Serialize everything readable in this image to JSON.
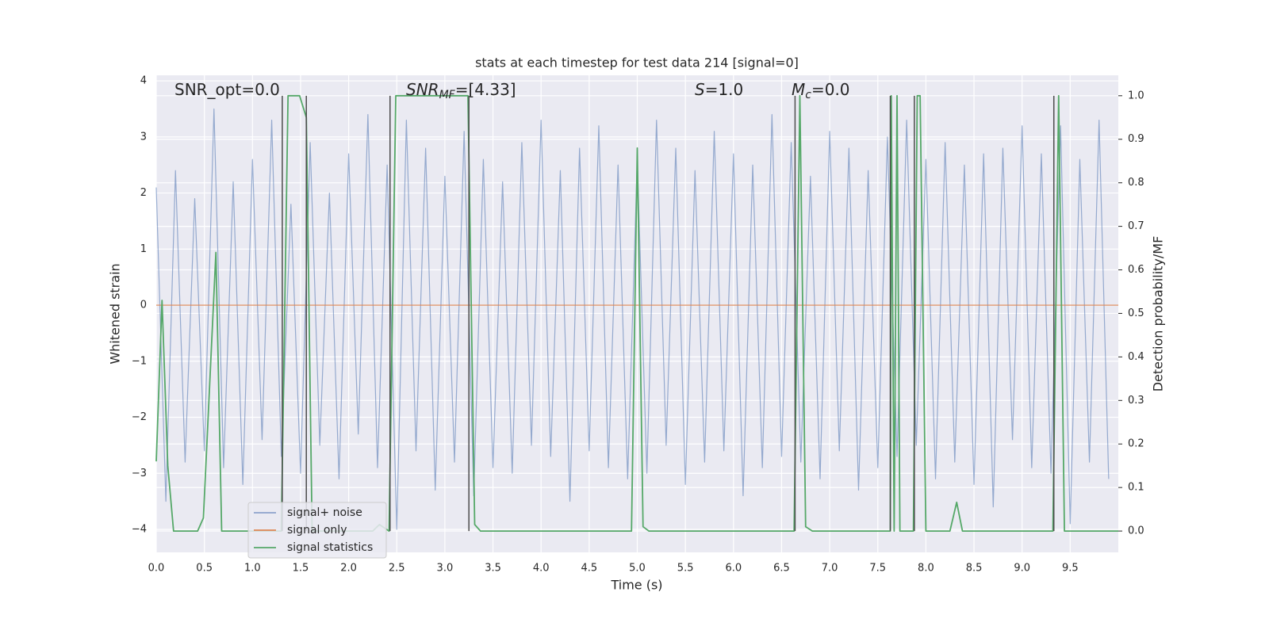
{
  "chart_data": {
    "type": "line",
    "title": "stats at each timestep for test data 214 [signal=0]",
    "xlabel": "Time (s)",
    "ylabel": "Whitened strain",
    "y2label": "Detection probability/MF",
    "xlim": [
      0,
      10
    ],
    "ylim": [
      -4.41,
      4.1
    ],
    "y2lim": [
      -0.049,
      1.047
    ],
    "xticks": [
      {
        "value": 0,
        "label": "0.0"
      },
      0.5,
      {
        "value": 1,
        "label": "1.0"
      },
      1.5,
      {
        "value": 2,
        "label": "2.0"
      },
      2.5,
      {
        "value": 3,
        "label": "3.0"
      },
      3.5,
      {
        "value": 4,
        "label": "4.0"
      },
      4.5,
      {
        "value": 5,
        "label": "5.0"
      },
      5.5,
      {
        "value": 6,
        "label": "6.0"
      },
      6.5,
      {
        "value": 7,
        "label": "7.0"
      },
      7.5,
      {
        "value": 8,
        "label": "8.0"
      },
      8.5,
      {
        "value": 9,
        "label": "9.0"
      },
      9.5
    ],
    "yticks": [
      {
        "value": -4,
        "label": "−4"
      },
      {
        "value": -3,
        "label": "−3"
      },
      {
        "value": -2,
        "label": "−2"
      },
      {
        "value": -1,
        "label": "−1"
      },
      0,
      1,
      2,
      3,
      4
    ],
    "y2ticks": [
      {
        "value": 0,
        "label": "0.0"
      },
      0.1,
      0.2,
      0.3,
      0.4,
      0.5,
      0.6,
      0.7,
      0.8,
      0.9,
      {
        "value": 1,
        "label": "1.0"
      }
    ],
    "grid": true,
    "legend": "lower left",
    "annotations": [
      {
        "main": "SNR_opt=0.0",
        "italic": false
      },
      {
        "main": "SNR",
        "sub": "MF",
        "rest": "=[4.33]",
        "italic": true
      },
      {
        "main": "S",
        "rest": "=1.0",
        "italic": true
      },
      {
        "main": "M",
        "sub": "c",
        "rest": "=0.0",
        "italic": true
      }
    ],
    "vlines": {
      "color": "#4d4d4d",
      "x": [
        1.31,
        1.56,
        2.43,
        3.25,
        6.64,
        7.63,
        7.88,
        9.33
      ]
    },
    "series": [
      {
        "name": "signal+ noise",
        "color": "#4c72b0",
        "x": [
          0.0,
          0.1,
          0.2,
          0.3,
          0.4,
          0.5,
          0.6,
          0.7,
          0.8,
          0.9,
          1.0,
          1.1,
          1.2,
          1.3,
          1.4,
          1.5,
          1.6,
          1.7,
          1.8,
          1.9,
          2.0,
          2.1,
          2.2,
          2.3,
          2.4,
          2.5,
          2.6,
          2.7,
          2.8,
          2.9,
          3.0,
          3.1,
          3.2,
          3.3,
          3.4,
          3.5,
          3.6,
          3.7,
          3.8,
          3.9,
          4.0,
          4.1,
          4.2,
          4.3,
          4.4,
          4.5,
          4.6,
          4.7,
          4.8,
          4.9,
          5.0,
          5.1,
          5.2,
          5.3,
          5.4,
          5.5,
          5.6,
          5.7,
          5.8,
          5.9,
          6.0,
          6.1,
          6.2,
          6.3,
          6.4,
          6.5,
          6.6,
          6.7,
          6.8,
          6.9,
          7.0,
          7.1,
          7.2,
          7.3,
          7.4,
          7.5,
          7.6,
          7.7,
          7.8,
          7.9,
          8.0,
          8.1,
          8.2,
          8.3,
          8.4,
          8.5,
          8.6,
          8.7,
          8.8,
          8.9,
          9.0,
          9.1,
          9.2,
          9.3,
          9.4,
          9.5,
          9.6,
          9.7,
          9.8,
          9.9
        ],
        "values": [
          2.1,
          -3.5,
          2.4,
          -2.8,
          1.9,
          -2.6,
          3.5,
          -2.9,
          2.2,
          -3.2,
          2.6,
          -2.4,
          3.3,
          -2.7,
          1.8,
          -3.0,
          2.9,
          -2.5,
          2.0,
          -3.1,
          2.7,
          -2.3,
          3.4,
          -2.9,
          2.5,
          -4.0,
          3.3,
          -2.6,
          2.8,
          -3.3,
          2.3,
          -2.8,
          3.1,
          -3.4,
          2.6,
          -2.9,
          2.2,
          -3.0,
          2.9,
          -2.5,
          3.3,
          -2.7,
          2.4,
          -3.5,
          2.8,
          -2.6,
          3.2,
          -2.9,
          2.5,
          -3.1,
          2.6,
          -3.0,
          3.3,
          -2.5,
          2.8,
          -3.2,
          2.4,
          -2.8,
          3.1,
          -2.6,
          2.7,
          -3.4,
          2.5,
          -2.9,
          3.4,
          -2.7,
          2.9,
          -2.8,
          2.3,
          -3.1,
          3.1,
          -2.6,
          2.8,
          -3.3,
          2.4,
          -2.9,
          3.0,
          -2.7,
          3.3,
          -2.5,
          2.6,
          -3.1,
          2.9,
          -2.8,
          2.5,
          -3.2,
          2.7,
          -3.6,
          2.8,
          -2.4,
          3.2,
          -2.9,
          2.7,
          -3.0,
          3.2,
          -3.9,
          2.6,
          -2.8,
          3.3,
          -3.1
        ]
      },
      {
        "name": "signal only",
        "color": "#dd8452",
        "x": [
          0,
          10
        ],
        "values": [
          0,
          0
        ]
      },
      {
        "name": "signal statistics",
        "color": "#55a868",
        "axis": "y2",
        "x": [
          0,
          0.06,
          0.12,
          0.18,
          0.43,
          0.49,
          0.62,
          0.68,
          1.3,
          1.37,
          1.49,
          1.56,
          1.62,
          2.25,
          2.32,
          2.42,
          2.49,
          3.24,
          3.31,
          3.37,
          4.94,
          5.0,
          5.06,
          5.12,
          6.63,
          6.69,
          6.75,
          6.82,
          7.63,
          7.64,
          7.67,
          7.7,
          7.73,
          7.87,
          7.91,
          7.94,
          8.0,
          8.25,
          8.32,
          8.38,
          9.32,
          9.38,
          9.44,
          10.0
        ],
        "values": [
          0.16,
          0.53,
          0.15,
          0,
          0,
          0.03,
          0.64,
          0,
          0,
          1,
          1,
          0.95,
          0,
          0,
          0.015,
          0,
          1,
          1,
          0.015,
          0,
          0,
          0.88,
          0.01,
          0,
          0,
          1,
          0.01,
          0,
          0,
          1,
          0,
          1,
          0,
          0,
          1,
          1,
          0,
          0,
          0.066,
          0,
          0,
          1,
          0,
          0
        ]
      }
    ]
  }
}
